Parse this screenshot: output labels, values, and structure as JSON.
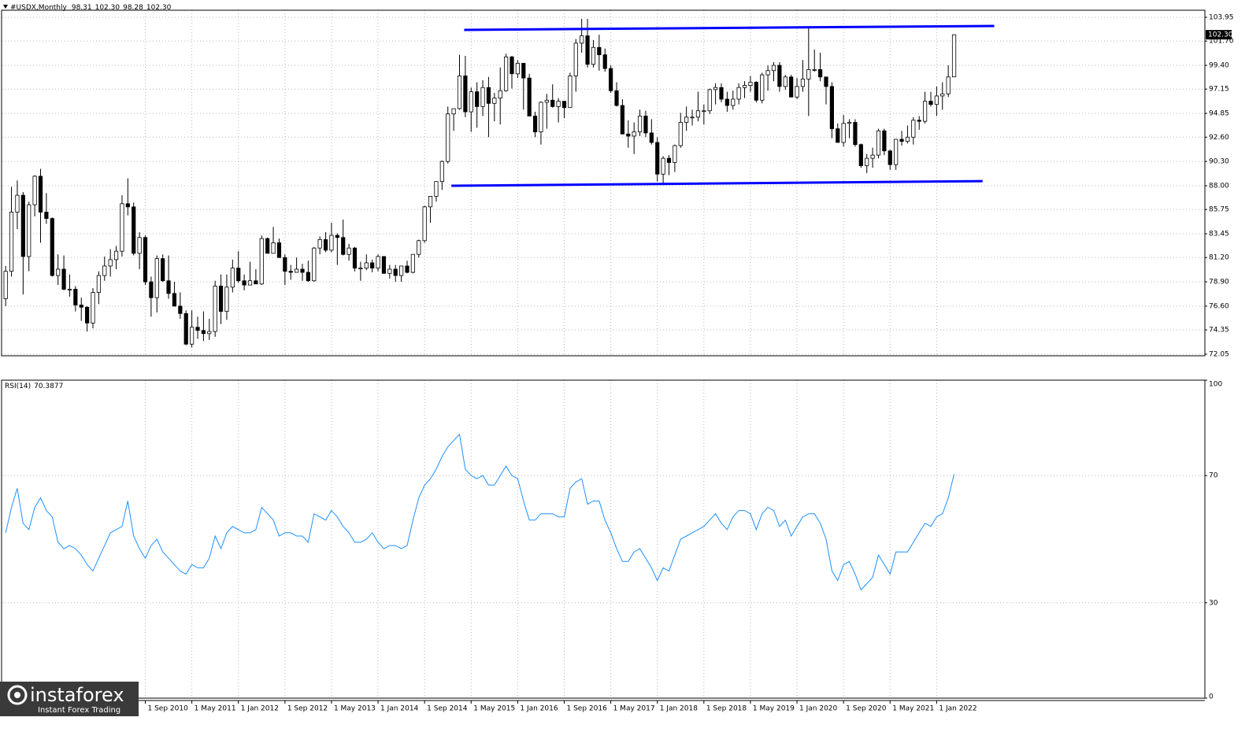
{
  "chart_data": {
    "type": "candlestick",
    "title": "#USDX,Monthly",
    "categories": [
      null,
      null,
      null,
      null,
      null,
      null,
      null,
      null,
      null,
      null,
      null,
      null,
      null,
      null,
      null,
      null,
      null,
      null,
      null,
      null,
      null,
      null,
      null,
      null,
      "1 Sep 2010",
      null,
      null,
      null,
      null,
      null,
      null,
      null,
      "1 May 2011",
      null,
      null,
      null,
      null,
      null,
      null,
      null,
      "1 Jan 2012",
      null,
      null,
      null,
      null,
      null,
      null,
      null,
      "1 Sep 2012",
      null,
      null,
      null,
      null,
      null,
      null,
      null,
      "1 May 2013",
      null,
      null,
      null,
      null,
      null,
      null,
      null,
      "1 Jan 2014",
      null,
      null,
      null,
      null,
      null,
      null,
      null,
      "1 Sep 2014",
      null,
      null,
      null,
      null,
      null,
      null,
      null,
      "1 May 2015",
      null,
      null,
      null,
      null,
      null,
      null,
      null,
      "1 Jan 2016",
      null,
      null,
      null,
      null,
      null,
      null,
      null,
      "1 Sep 2016",
      null,
      null,
      null,
      null,
      null,
      null,
      null,
      "1 May 2017",
      null,
      null,
      null,
      null,
      null,
      null,
      null,
      "1 Jan 2018",
      null,
      null,
      null,
      null,
      null,
      null,
      null,
      "1 Sep 2018",
      null,
      null,
      null,
      null,
      null,
      null,
      null,
      "1 May 2019",
      null,
      null,
      null,
      null,
      null,
      null,
      null,
      "1 Jan 2020",
      null,
      null,
      null,
      null,
      null,
      null,
      null,
      "1 Sep 2020",
      null,
      null,
      null,
      null,
      null,
      null,
      null,
      "1 May 2021",
      null,
      null,
      null,
      null,
      null,
      null,
      null,
      "1 Jan 2022",
      null,
      null,
      null
    ],
    "ohlc": [
      [
        77.3,
        80.4,
        76.6,
        79.9
      ],
      [
        79.9,
        87.9,
        79.4,
        85.5
      ],
      [
        85.5,
        88.5,
        83.9,
        87.1
      ],
      [
        87.1,
        87.4,
        77.7,
        81.3
      ],
      [
        81.3,
        86.5,
        79.9,
        86.2
      ],
      [
        86.2,
        89.0,
        85.1,
        88.9
      ],
      [
        88.9,
        89.6,
        82.6,
        85.5
      ],
      [
        85.5,
        87.3,
        84.4,
        84.9
      ],
      [
        84.9,
        85.0,
        79.4,
        79.5
      ],
      [
        79.5,
        81.5,
        78.6,
        80.1
      ],
      [
        80.1,
        81.4,
        78.1,
        78.2
      ],
      [
        78.2,
        79.6,
        77.5,
        78.2
      ],
      [
        78.2,
        78.5,
        76.1,
        76.7
      ],
      [
        76.7,
        77.4,
        75.2,
        76.5
      ],
      [
        76.5,
        76.6,
        74.2,
        75.0
      ],
      [
        75.0,
        78.3,
        74.5,
        77.9
      ],
      [
        77.9,
        79.9,
        76.8,
        79.5
      ],
      [
        79.5,
        81.3,
        79.0,
        80.4
      ],
      [
        80.4,
        82.0,
        79.4,
        81.0
      ],
      [
        81.0,
        82.3,
        80.1,
        81.8
      ],
      [
        81.8,
        87.1,
        81.3,
        86.3
      ],
      [
        86.3,
        88.7,
        85.2,
        86.0
      ],
      [
        86.0,
        86.4,
        81.4,
        81.6
      ],
      [
        81.6,
        83.6,
        80.1,
        83.1
      ],
      [
        83.1,
        83.3,
        78.6,
        78.9
      ],
      [
        78.9,
        79.4,
        75.6,
        77.4
      ],
      [
        77.4,
        81.4,
        76.0,
        81.1
      ],
      [
        81.1,
        81.5,
        78.9,
        79.0
      ],
      [
        79.0,
        81.4,
        77.3,
        77.8
      ],
      [
        77.8,
        78.9,
        76.6,
        76.6
      ],
      [
        76.6,
        77.9,
        75.4,
        75.9
      ],
      [
        75.9,
        76.2,
        72.9,
        73.0
      ],
      [
        73.0,
        76.2,
        72.7,
        74.6
      ],
      [
        74.6,
        75.6,
        73.5,
        74.3
      ],
      [
        74.3,
        76.1,
        73.3,
        74.0
      ],
      [
        74.0,
        75.4,
        73.4,
        74.2
      ],
      [
        74.2,
        79.0,
        73.7,
        78.5
      ],
      [
        78.5,
        79.6,
        74.9,
        76.1
      ],
      [
        76.1,
        79.6,
        75.3,
        78.4
      ],
      [
        78.4,
        81.0,
        77.9,
        80.2
      ],
      [
        80.2,
        81.8,
        78.8,
        79.0
      ],
      [
        79.0,
        79.6,
        78.1,
        78.6
      ],
      [
        78.6,
        80.8,
        78.6,
        79.0
      ],
      [
        79.0,
        80.1,
        78.7,
        78.7
      ],
      [
        78.7,
        83.3,
        78.6,
        83.0
      ],
      [
        83.0,
        83.1,
        81.6,
        81.6
      ],
      [
        81.6,
        84.1,
        81.6,
        82.6
      ],
      [
        82.6,
        83.0,
        81.2,
        81.2
      ],
      [
        81.2,
        81.5,
        78.6,
        79.9
      ],
      [
        79.9,
        80.5,
        79.1,
        79.8
      ],
      [
        79.8,
        81.2,
        79.8,
        80.1
      ],
      [
        80.1,
        80.6,
        79.0,
        79.8
      ],
      [
        79.8,
        80.9,
        78.9,
        79.0
      ],
      [
        79.0,
        82.2,
        78.9,
        82.1
      ],
      [
        82.1,
        83.2,
        81.5,
        82.9
      ],
      [
        82.9,
        83.6,
        81.7,
        81.9
      ],
      [
        81.9,
        84.5,
        81.7,
        83.3
      ],
      [
        83.3,
        83.5,
        80.5,
        83.1
      ],
      [
        83.1,
        84.8,
        81.4,
        81.5
      ],
      [
        81.5,
        82.5,
        80.9,
        82.1
      ],
      [
        82.1,
        82.2,
        79.9,
        80.2
      ],
      [
        80.2,
        80.8,
        79.0,
        80.2
      ],
      [
        80.2,
        81.5,
        80.0,
        80.7
      ],
      [
        80.7,
        81.0,
        79.8,
        80.2
      ],
      [
        80.2,
        81.5,
        79.9,
        81.3
      ],
      [
        81.3,
        81.3,
        79.7,
        79.7
      ],
      [
        79.7,
        80.5,
        79.2,
        80.1
      ],
      [
        80.1,
        80.5,
        78.9,
        79.5
      ],
      [
        79.5,
        80.4,
        78.9,
        80.4
      ],
      [
        80.4,
        80.9,
        79.7,
        79.8
      ],
      [
        79.8,
        81.5,
        79.7,
        81.5
      ],
      [
        81.5,
        82.9,
        81.2,
        82.8
      ],
      [
        82.8,
        86.1,
        82.6,
        86.0
      ],
      [
        86.0,
        87.0,
        84.5,
        87.0
      ],
      [
        87.0,
        88.4,
        86.5,
        88.4
      ],
      [
        88.4,
        90.4,
        87.6,
        90.3
      ],
      [
        90.3,
        95.5,
        90.1,
        94.8
      ],
      [
        94.8,
        95.3,
        93.2,
        95.3
      ],
      [
        95.3,
        100.4,
        95.2,
        98.4
      ],
      [
        98.4,
        100.3,
        94.5,
        95.0
      ],
      [
        95.0,
        97.3,
        93.1,
        96.9
      ],
      [
        96.9,
        97.8,
        93.5,
        95.5
      ],
      [
        95.5,
        98.0,
        94.6,
        97.3
      ],
      [
        97.3,
        98.3,
        92.6,
        95.8
      ],
      [
        95.8,
        96.8,
        94.1,
        96.3
      ],
      [
        96.3,
        99.2,
        93.8,
        97.0
      ],
      [
        97.0,
        100.5,
        96.9,
        100.2
      ],
      [
        100.2,
        100.3,
        97.2,
        98.6
      ],
      [
        98.6,
        99.9,
        98.2,
        99.6
      ],
      [
        99.6,
        99.6,
        95.2,
        98.2
      ],
      [
        98.2,
        98.6,
        94.6,
        94.6
      ],
      [
        94.6,
        95.0,
        92.6,
        93.1
      ],
      [
        93.1,
        96.0,
        91.9,
        95.9
      ],
      [
        95.9,
        96.7,
        93.4,
        96.1
      ],
      [
        96.1,
        97.6,
        95.4,
        95.5
      ],
      [
        95.5,
        96.3,
        94.0,
        96.0
      ],
      [
        96.0,
        96.0,
        94.4,
        95.4
      ],
      [
        95.4,
        98.7,
        95.4,
        98.4
      ],
      [
        98.4,
        101.9,
        96.9,
        101.5
      ],
      [
        101.5,
        103.8,
        100.6,
        102.2
      ],
      [
        102.2,
        103.8,
        99.2,
        99.5
      ],
      [
        99.5,
        101.8,
        99.2,
        101.1
      ],
      [
        101.1,
        102.3,
        98.9,
        100.4
      ],
      [
        100.4,
        101.0,
        98.8,
        99.1
      ],
      [
        99.1,
        99.4,
        96.8,
        97.0
      ],
      [
        97.0,
        97.8,
        95.5,
        95.6
      ],
      [
        95.6,
        96.2,
        92.9,
        92.9
      ],
      [
        92.9,
        94.2,
        91.6,
        92.7
      ],
      [
        92.7,
        94.0,
        91.0,
        93.1
      ],
      [
        93.1,
        95.2,
        92.7,
        94.6
      ],
      [
        94.6,
        95.1,
        92.6,
        93.0
      ],
      [
        93.0,
        94.3,
        91.9,
        92.1
      ],
      [
        92.1,
        92.6,
        88.4,
        89.1
      ],
      [
        89.1,
        90.8,
        88.2,
        90.6
      ],
      [
        90.6,
        90.9,
        89.0,
        90.2
      ],
      [
        90.2,
        91.9,
        89.3,
        91.8
      ],
      [
        91.8,
        94.9,
        91.6,
        94.0
      ],
      [
        94.0,
        95.5,
        93.2,
        94.5
      ],
      [
        94.5,
        95.2,
        93.7,
        94.5
      ],
      [
        94.5,
        96.9,
        94.1,
        95.1
      ],
      [
        95.1,
        95.7,
        93.8,
        95.1
      ],
      [
        95.1,
        97.2,
        94.8,
        97.1
      ],
      [
        97.1,
        97.7,
        95.7,
        97.3
      ],
      [
        97.3,
        97.7,
        95.9,
        96.2
      ],
      [
        96.2,
        96.9,
        95.0,
        95.6
      ],
      [
        95.6,
        97.0,
        95.2,
        96.2
      ],
      [
        96.2,
        97.7,
        95.7,
        97.3
      ],
      [
        97.3,
        97.9,
        96.3,
        97.5
      ],
      [
        97.5,
        98.4,
        96.9,
        97.8
      ],
      [
        97.8,
        97.9,
        95.9,
        96.1
      ],
      [
        96.1,
        98.7,
        95.8,
        98.5
      ],
      [
        98.5,
        99.4,
        97.0,
        98.9
      ],
      [
        98.9,
        99.7,
        97.9,
        99.4
      ],
      [
        99.4,
        99.7,
        96.9,
        97.4
      ],
      [
        97.4,
        98.5,
        97.1,
        98.3
      ],
      [
        98.3,
        98.5,
        96.4,
        96.4
      ],
      [
        96.4,
        98.2,
        96.2,
        97.4
      ],
      [
        97.4,
        99.9,
        96.9,
        98.1
      ],
      [
        98.1,
        103.0,
        94.6,
        99.0
      ],
      [
        99.0,
        100.9,
        98.8,
        99.0
      ],
      [
        99.0,
        100.6,
        97.9,
        98.3
      ],
      [
        98.3,
        98.3,
        95.7,
        97.4
      ],
      [
        97.4,
        97.8,
        92.5,
        93.4
      ],
      [
        93.4,
        93.9,
        92.1,
        92.1
      ],
      [
        92.1,
        94.7,
        91.7,
        93.9
      ],
      [
        93.9,
        94.3,
        92.5,
        94.0
      ],
      [
        94.0,
        94.3,
        91.7,
        91.9
      ],
      [
        91.9,
        92.0,
        89.7,
        89.9
      ],
      [
        89.9,
        91.0,
        89.2,
        90.6
      ],
      [
        90.6,
        91.6,
        89.7,
        90.9
      ],
      [
        90.9,
        93.4,
        90.6,
        93.2
      ],
      [
        93.2,
        93.4,
        90.9,
        91.3
      ],
      [
        91.3,
        91.4,
        89.5,
        90.0
      ],
      [
        90.0,
        92.4,
        89.5,
        92.4
      ],
      [
        92.4,
        93.2,
        91.8,
        92.2
      ],
      [
        92.2,
        93.7,
        92.0,
        92.6
      ],
      [
        92.6,
        94.5,
        91.9,
        94.2
      ],
      [
        94.2,
        94.6,
        93.3,
        94.1
      ],
      [
        94.1,
        96.9,
        93.9,
        96.0
      ],
      [
        96.0,
        96.9,
        95.5,
        95.7
      ],
      [
        95.7,
        97.4,
        94.6,
        96.5
      ],
      [
        96.5,
        97.8,
        95.2,
        96.7
      ],
      [
        96.7,
        99.4,
        96.4,
        98.3
      ],
      [
        98.31,
        102.3,
        98.28,
        102.3
      ]
    ],
    "value_labels": {
      "ohlc.163": [
        "98.31",
        "102.30",
        "98.28",
        "102.30"
      ]
    },
    "xlim": [
      -0.7,
      206.1
    ],
    "ylim": [
      71.9,
      104.62
    ],
    "yticks": [
      {
        "value": 103.95,
        "label": "103.95"
      },
      {
        "value": 101.7,
        "label": "101.70"
      },
      {
        "value": 99.4,
        "label": "99.40"
      },
      {
        "value": 97.15,
        "label": "97.15"
      },
      {
        "value": 94.85,
        "label": "94.85"
      },
      {
        "value": 92.6,
        "label": "92.60"
      },
      {
        "value": 90.3,
        "label": "90.30"
      },
      {
        "value": 88,
        "label": "88.00"
      },
      {
        "value": 85.75,
        "label": "85.75"
      },
      {
        "value": 83.45,
        "label": "83.45"
      },
      {
        "value": 81.2,
        "label": "81.20"
      },
      {
        "value": 78.9,
        "label": "78.90"
      },
      {
        "value": 76.6,
        "label": "76.60"
      },
      {
        "value": 74.35,
        "label": "74.35"
      },
      {
        "value": 72.05,
        "label": "72.05"
      }
    ],
    "grid": true,
    "up_color": "#ffffff",
    "down_color": "#000000",
    "trendlines": [
      {
        "color": "#0000ff",
        "x0": 78.8,
        "y0": 102.76,
        "x1": 169.9,
        "y1": 103.13
      },
      {
        "color": "#0000ff",
        "x0": 76.6,
        "y0": 88.0,
        "x1": 167.9,
        "y1": 88.44
      }
    ],
    "indicator": {
      "name": "RSI(14)",
      "color": "#1e90ff",
      "ylim": [
        0,
        100
      ],
      "yticks": [
        0,
        30,
        70,
        100
      ],
      "values": [
        52,
        60,
        66,
        55,
        53,
        60,
        63,
        59,
        57,
        49,
        47,
        48,
        47,
        45,
        42,
        40,
        44,
        48,
        52,
        53,
        54,
        62,
        51,
        47,
        44,
        48,
        50,
        46,
        44,
        42,
        40,
        39,
        42,
        41,
        41,
        44,
        51,
        47,
        52,
        54,
        53,
        52,
        52,
        53,
        60,
        58,
        56,
        51,
        52,
        52,
        51,
        51,
        49,
        58,
        57,
        56,
        59,
        57,
        54,
        52,
        49,
        49,
        50,
        52,
        49,
        47,
        48,
        48,
        47,
        48,
        56,
        63,
        67,
        69,
        72,
        76,
        79,
        81,
        83,
        72,
        70,
        69,
        70,
        67,
        67,
        70,
        73,
        70,
        69,
        62,
        56,
        56,
        58,
        58,
        58,
        57,
        57,
        66,
        68,
        69,
        61,
        62,
        62,
        56,
        52,
        47,
        43,
        43,
        46,
        47,
        44,
        41,
        37,
        41,
        40,
        45,
        50,
        51,
        52,
        53,
        54,
        56,
        58,
        55,
        53,
        57,
        59,
        59,
        58,
        53,
        58,
        60,
        59,
        54,
        56,
        51,
        54,
        57,
        58,
        58,
        55,
        50,
        40,
        37,
        42,
        43,
        39,
        34,
        36,
        38,
        45,
        42,
        39,
        46,
        46,
        46,
        49,
        52,
        55,
        54,
        57,
        58,
        63,
        70.3877
      ]
    },
    "watermark": {
      "name": "instaforex",
      "tagline": "Instant Forex Trading"
    }
  }
}
